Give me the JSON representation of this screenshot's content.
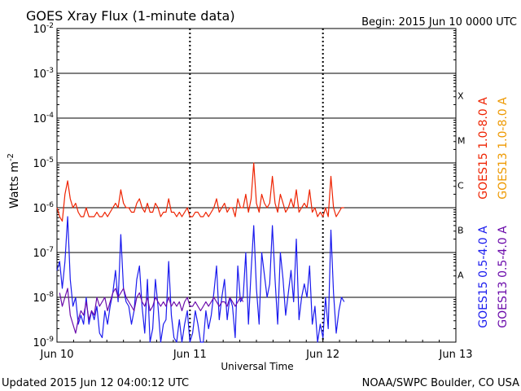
{
  "header": {
    "title": "GOES Xray Flux (1-minute data)",
    "begin": "Begin:  2015 Jun 10 0000 UTC"
  },
  "footer": {
    "updated": "Updated 2015 Jun 12 04:00:12 UTC",
    "credit": "NOAA/SWPC Boulder, CO USA"
  },
  "chart_data": {
    "type": "line",
    "title": "GOES Xray Flux (1-minute data)",
    "xlabel": "Universal Time",
    "ylabel": "Watts m",
    "ylabel_sup": "-2",
    "yscale": "log",
    "ylim_exp": [
      -9,
      -2
    ],
    "xlim_days": [
      0,
      3
    ],
    "y_tick_base": "10",
    "y_tick_exponents": [
      "-9",
      "-8",
      "-7",
      "-6",
      "-5",
      "-4",
      "-3",
      "-2"
    ],
    "x_ticks": [
      {
        "day": 0,
        "label": "Jun 10"
      },
      {
        "day": 1,
        "label": "Jun 11"
      },
      {
        "day": 2,
        "label": "Jun 12"
      },
      {
        "day": 3,
        "label": "Jun 13"
      }
    ],
    "flare_classes": [
      {
        "label": "A",
        "exp": -7.5
      },
      {
        "label": "B",
        "exp": -6.5
      },
      {
        "label": "C",
        "exp": -5.5
      },
      {
        "label": "M",
        "exp": -4.5
      },
      {
        "label": "X",
        "exp": -3.5
      }
    ],
    "grid": "horizontal at each decade, dotted vertical at day boundaries",
    "legend": "right side, rotated",
    "series": [
      {
        "name": "GOES15 1.0-8.0 A",
        "color": "#ee2200",
        "x": [
          0.0,
          0.02,
          0.04,
          0.06,
          0.08,
          0.1,
          0.12,
          0.14,
          0.16,
          0.18,
          0.2,
          0.22,
          0.24,
          0.26,
          0.28,
          0.3,
          0.32,
          0.34,
          0.36,
          0.38,
          0.4,
          0.42,
          0.44,
          0.46,
          0.48,
          0.5,
          0.52,
          0.54,
          0.56,
          0.58,
          0.6,
          0.62,
          0.64,
          0.66,
          0.68,
          0.7,
          0.72,
          0.74,
          0.76,
          0.78,
          0.8,
          0.82,
          0.84,
          0.86,
          0.88,
          0.9,
          0.92,
          0.94,
          0.96,
          0.98,
          1.0,
          1.02,
          1.04,
          1.06,
          1.08,
          1.1,
          1.12,
          1.14,
          1.16,
          1.18,
          1.2,
          1.22,
          1.24,
          1.26,
          1.28,
          1.3,
          1.32,
          1.34,
          1.36,
          1.38,
          1.4,
          1.42,
          1.44,
          1.46,
          1.48,
          1.5,
          1.52,
          1.54,
          1.56,
          1.58,
          1.6,
          1.62,
          1.64,
          1.66,
          1.68,
          1.7,
          1.72,
          1.74,
          1.76,
          1.78,
          1.8,
          1.82,
          1.84,
          1.86,
          1.88,
          1.9,
          1.92,
          1.94,
          1.96,
          1.98,
          2.0,
          2.02,
          2.04,
          2.06,
          2.08,
          2.1,
          2.12,
          2.14,
          2.16
        ],
        "y_exp": [
          -6.0,
          -6.2,
          -6.3,
          -5.7,
          -5.4,
          -5.8,
          -6.0,
          -5.9,
          -6.1,
          -6.2,
          -6.2,
          -6.0,
          -6.2,
          -6.2,
          -6.2,
          -6.1,
          -6.2,
          -6.2,
          -6.1,
          -6.2,
          -6.1,
          -6.0,
          -5.9,
          -6.0,
          -5.6,
          -5.9,
          -6.0,
          -6.0,
          -6.1,
          -6.1,
          -5.9,
          -5.8,
          -6.0,
          -6.1,
          -5.9,
          -6.1,
          -6.1,
          -5.9,
          -6.0,
          -6.2,
          -6.1,
          -6.1,
          -5.8,
          -6.1,
          -6.1,
          -6.2,
          -6.1,
          -6.2,
          -6.1,
          -6.0,
          -6.2,
          -6.2,
          -6.1,
          -6.1,
          -6.2,
          -6.2,
          -6.1,
          -6.2,
          -6.1,
          -6.0,
          -5.8,
          -6.1,
          -6.0,
          -5.9,
          -6.1,
          -6.0,
          -6.0,
          -6.2,
          -5.8,
          -6.0,
          -6.0,
          -5.7,
          -6.1,
          -5.8,
          -5.0,
          -5.9,
          -6.1,
          -5.7,
          -5.9,
          -6.0,
          -5.9,
          -5.3,
          -5.9,
          -6.1,
          -5.7,
          -5.9,
          -6.1,
          -6.0,
          -5.8,
          -6.0,
          -5.6,
          -6.1,
          -6.0,
          -5.9,
          -6.0,
          -5.6,
          -6.1,
          -6.0,
          -6.2,
          -6.1,
          -6.2,
          -6.0,
          -6.2,
          -5.3,
          -6.0,
          -6.2,
          -6.1,
          -6.0,
          -6.0
        ]
      },
      {
        "name": "GOES13 1.0-8.0 A",
        "color": "#ee9900",
        "x": [],
        "y_exp": []
      },
      {
        "name": "GOES15 0.5-4.0 A",
        "color": "#1a1aee",
        "x": [
          0.0,
          0.02,
          0.04,
          0.06,
          0.08,
          0.1,
          0.12,
          0.14,
          0.16,
          0.18,
          0.2,
          0.22,
          0.24,
          0.26,
          0.28,
          0.3,
          0.32,
          0.34,
          0.36,
          0.38,
          0.4,
          0.42,
          0.44,
          0.46,
          0.48,
          0.5,
          0.52,
          0.54,
          0.56,
          0.58,
          0.6,
          0.62,
          0.64,
          0.66,
          0.68,
          0.7,
          0.72,
          0.74,
          0.76,
          0.78,
          0.8,
          0.82,
          0.84,
          0.86,
          0.88,
          0.9,
          0.92,
          0.94,
          0.96,
          0.98,
          1.0,
          1.02,
          1.04,
          1.06,
          1.08,
          1.1,
          1.12,
          1.14,
          1.16,
          1.18,
          1.2,
          1.22,
          1.24,
          1.26,
          1.28,
          1.3,
          1.32,
          1.34,
          1.36,
          1.38,
          1.4,
          1.42,
          1.44,
          1.46,
          1.48,
          1.5,
          1.52,
          1.54,
          1.56,
          1.58,
          1.6,
          1.62,
          1.64,
          1.66,
          1.68,
          1.7,
          1.72,
          1.74,
          1.76,
          1.78,
          1.8,
          1.82,
          1.84,
          1.86,
          1.88,
          1.9,
          1.92,
          1.94,
          1.96,
          1.98,
          2.0,
          2.02,
          2.04,
          2.06,
          2.08,
          2.1,
          2.12,
          2.14,
          2.16
        ],
        "y_exp": [
          -7.4,
          -7.2,
          -7.8,
          -7.2,
          -6.2,
          -7.6,
          -8.2,
          -8.0,
          -8.6,
          -8.4,
          -8.6,
          -8.0,
          -8.6,
          -8.3,
          -8.5,
          -8.2,
          -8.8,
          -8.9,
          -8.3,
          -8.6,
          -8.2,
          -7.9,
          -7.4,
          -8.1,
          -6.6,
          -7.8,
          -8.1,
          -8.2,
          -8.6,
          -8.3,
          -7.6,
          -7.3,
          -8.2,
          -8.8,
          -7.6,
          -9.0,
          -8.7,
          -7.6,
          -8.2,
          -9.0,
          -8.6,
          -8.5,
          -7.2,
          -8.4,
          -8.9,
          -9.0,
          -8.5,
          -9.0,
          -8.6,
          -8.3,
          -9.0,
          -8.8,
          -8.3,
          -8.6,
          -9.0,
          -9.0,
          -8.3,
          -8.7,
          -8.4,
          -7.9,
          -7.3,
          -8.5,
          -8.0,
          -7.6,
          -8.5,
          -8.0,
          -8.2,
          -8.9,
          -7.3,
          -8.1,
          -8.0,
          -7.0,
          -8.6,
          -7.4,
          -6.4,
          -7.8,
          -8.6,
          -7.0,
          -7.5,
          -8.0,
          -7.7,
          -6.4,
          -7.6,
          -8.6,
          -7.0,
          -7.6,
          -8.4,
          -7.9,
          -7.4,
          -8.1,
          -6.7,
          -8.5,
          -8.0,
          -7.7,
          -8.0,
          -7.3,
          -8.6,
          -8.2,
          -9.0,
          -8.6,
          -8.9,
          -8.0,
          -8.7,
          -6.5,
          -7.9,
          -8.8,
          -8.3,
          -8.0,
          -8.1
        ]
      },
      {
        "name": "GOES13 0.5-4.0 A",
        "color": "#6a0aaa",
        "x": [
          0.02,
          0.04,
          0.06,
          0.08,
          0.1,
          0.12,
          0.14,
          0.16,
          0.18,
          0.2,
          0.22,
          0.24,
          0.26,
          0.28,
          0.3,
          0.32,
          0.34,
          0.36,
          0.38,
          0.4,
          0.42,
          0.44,
          0.46,
          0.48,
          0.5,
          0.52,
          0.54,
          0.56,
          0.58,
          0.6,
          0.62,
          0.64,
          0.66,
          0.68,
          0.7,
          0.72,
          0.74,
          0.76,
          0.78,
          0.8,
          0.82,
          0.84,
          0.86,
          0.88,
          0.9,
          0.92,
          0.94,
          0.96,
          0.98,
          1.0,
          1.02,
          1.04,
          1.06,
          1.08,
          1.1,
          1.12,
          1.14,
          1.16,
          1.18,
          1.2,
          1.22,
          1.24,
          1.26,
          1.28,
          1.3,
          1.32,
          1.34,
          1.36,
          1.38,
          1.4
        ],
        "y_exp": [
          -7.9,
          -8.2,
          -8.0,
          -7.8,
          -8.4,
          -8.6,
          -8.8,
          -8.5,
          -8.3,
          -8.4,
          -8.1,
          -8.5,
          -8.3,
          -8.4,
          -8.0,
          -8.2,
          -8.1,
          -8.0,
          -8.3,
          -8.1,
          -7.9,
          -7.8,
          -8.0,
          -7.9,
          -7.8,
          -8.0,
          -8.1,
          -8.2,
          -8.3,
          -8.0,
          -7.9,
          -8.1,
          -8.2,
          -8.0,
          -8.3,
          -8.2,
          -8.0,
          -8.1,
          -8.2,
          -8.1,
          -8.2,
          -8.0,
          -8.2,
          -8.1,
          -8.2,
          -8.1,
          -8.3,
          -8.1,
          -8.0,
          -8.2,
          -8.2,
          -8.1,
          -8.2,
          -8.3,
          -8.2,
          -8.1,
          -8.2,
          -8.1,
          -8.0,
          -8.1,
          -8.2,
          -8.1,
          -8.1,
          -8.2,
          -8.0,
          -8.1,
          -8.2,
          -8.1,
          -8.0,
          -8.1
        ]
      }
    ]
  }
}
